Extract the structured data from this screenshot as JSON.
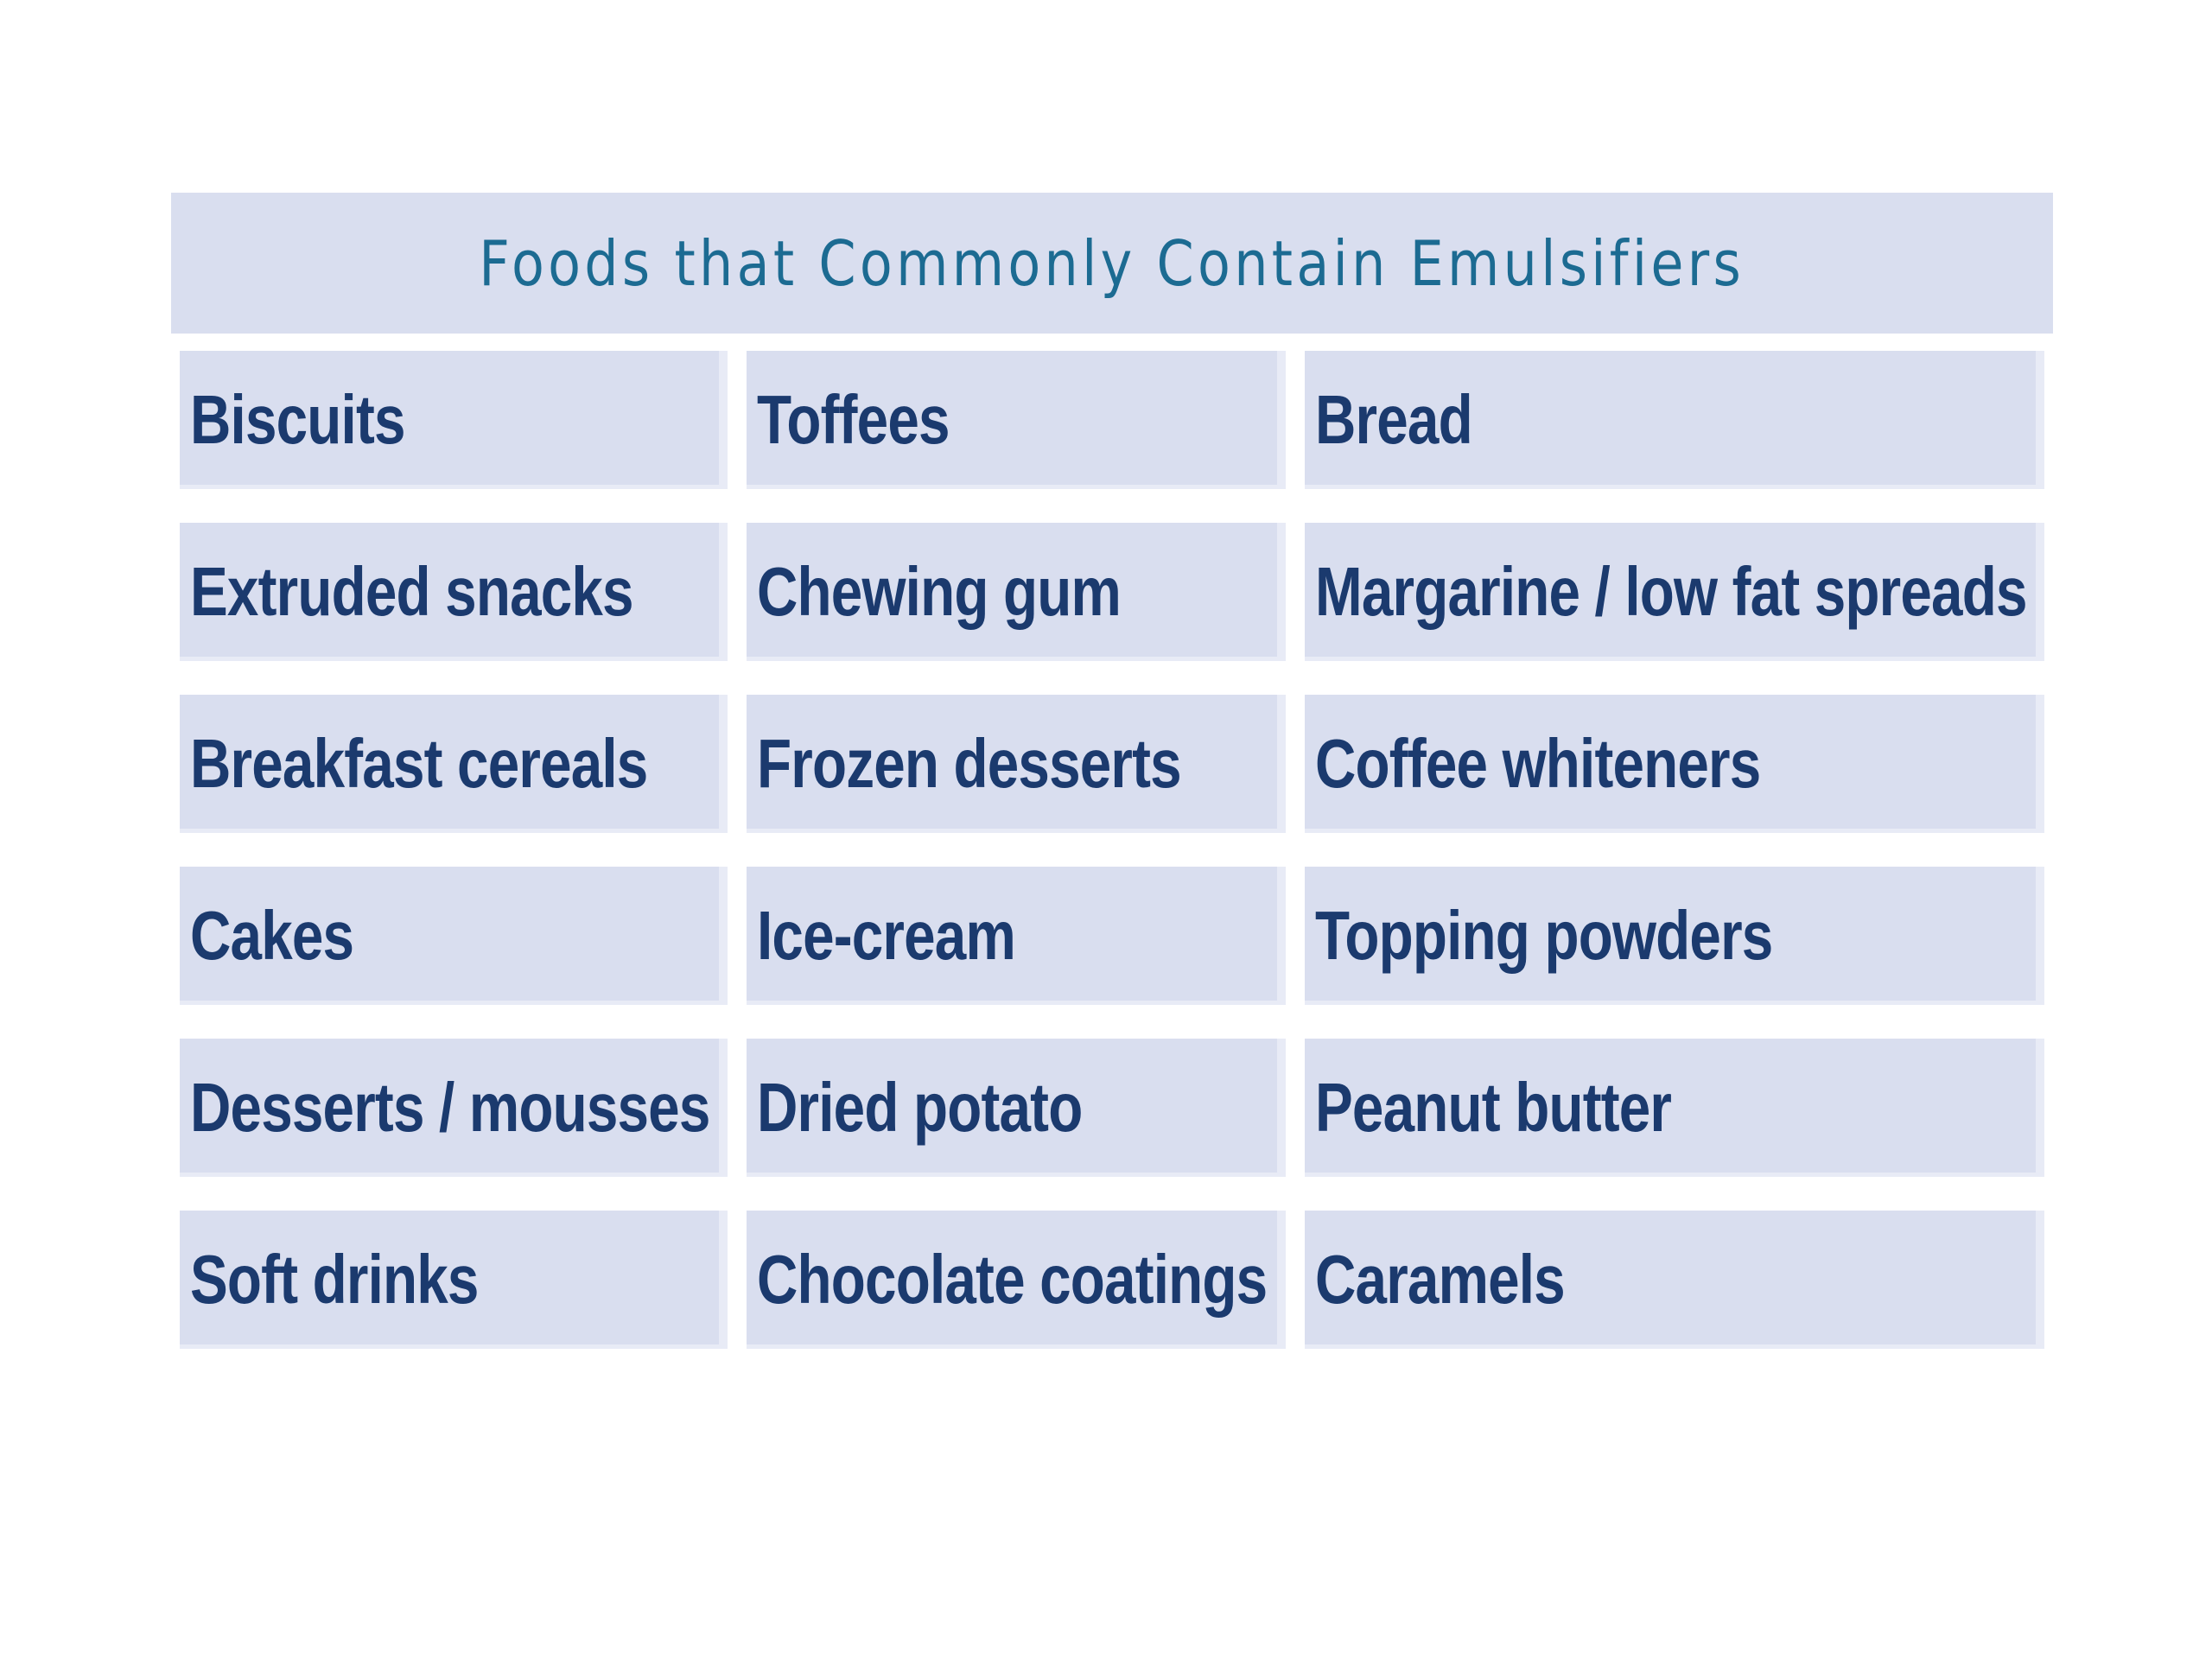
{
  "table": {
    "title": "Foods that Commonly Contain Emulsifiers",
    "rows": [
      [
        "Biscuits",
        "Toffees",
        "Bread"
      ],
      [
        "Extruded snacks",
        "Chewing gum",
        "Margarine / low fat spreads"
      ],
      [
        "Breakfast cereals",
        "Frozen desserts",
        "Coffee whiteners"
      ],
      [
        "Cakes",
        "Ice-cream",
        "Topping powders"
      ],
      [
        "Desserts / mousses",
        "Dried potato",
        "Peanut butter"
      ],
      [
        "Soft drinks",
        "Chocolate coatings",
        "Caramels"
      ]
    ]
  },
  "colors": {
    "cell_background": "#d9deef",
    "title_text": "#1c6b92",
    "cell_text": "#1b3a6e"
  }
}
